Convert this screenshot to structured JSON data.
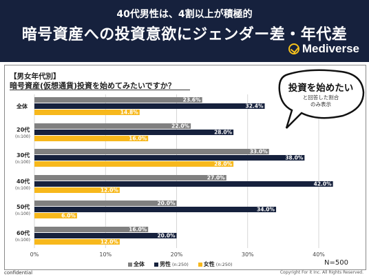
{
  "header": {
    "subtitle": "40代男性は、4割以上が積極的",
    "title": "暗号資産への投資意欲にジェンダー差・年代差",
    "brand": "Mediverse"
  },
  "panel": {
    "segment_label": "【男女年代別】",
    "question": "暗号資産(仮想通貨)投資を始めてみたいですか？"
  },
  "callout": {
    "main": "投資を始めたい",
    "sub_line1": "と回答した割合",
    "sub_line2": "のみ表示"
  },
  "footer": {
    "confidential": "confidential",
    "copyright": "Copyright For it Inc. All Rights Reserved.",
    "n_total": "N=500"
  },
  "colors": {
    "header_bg": "#16213d",
    "all": "#808080",
    "male": "#16213d",
    "female": "#f7b81c",
    "brand_accent": "#f7c21c"
  },
  "chart_data": {
    "type": "bar",
    "orientation": "horizontal",
    "categories": [
      "全体",
      "20代",
      "30代",
      "40代",
      "50代",
      "60代"
    ],
    "category_notes": [
      "",
      "(n:100)",
      "(n:100)",
      "(n:100)",
      "(n:100)",
      "(n:100)"
    ],
    "series": [
      {
        "name": "全体",
        "note": "",
        "color": "#808080",
        "values": [
          23.6,
          22.0,
          33.0,
          27.0,
          20.0,
          16.0
        ]
      },
      {
        "name": "男性",
        "note": "(n:250)",
        "color": "#16213d",
        "values": [
          32.4,
          28.0,
          38.0,
          42.0,
          34.0,
          20.0
        ]
      },
      {
        "name": "女性",
        "note": "(n:250)",
        "color": "#f7b81c",
        "values": [
          14.8,
          16.0,
          28.0,
          12.0,
          6.0,
          12.0
        ]
      }
    ],
    "xlim": [
      0,
      40
    ],
    "xticks": [
      "0%",
      "10%",
      "20%",
      "30%",
      "40%"
    ],
    "grid": true,
    "legend": "bottom"
  }
}
